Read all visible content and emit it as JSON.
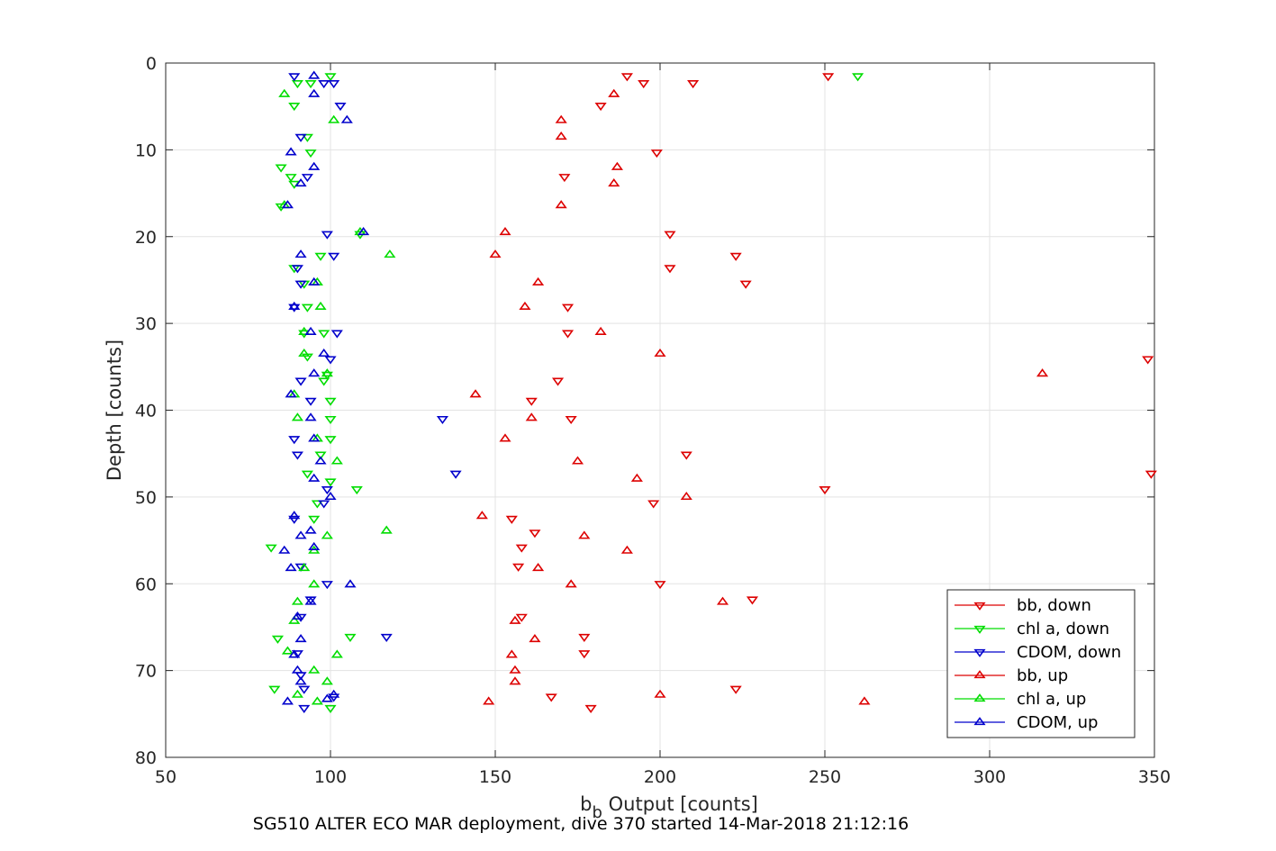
{
  "chart_data": {
    "type": "scatter",
    "xlabel_main": "b",
    "xlabel_sub": "b",
    "xlabel_rest": " Output [counts]",
    "ylabel": "Depth [counts]",
    "xlim": [
      50,
      350
    ],
    "ylim": [
      0,
      80
    ],
    "y_reversed": true,
    "x_ticks": [
      50,
      100,
      150,
      200,
      250,
      300,
      350
    ],
    "y_ticks": [
      0,
      10,
      20,
      30,
      40,
      50,
      60,
      70,
      80
    ],
    "grid": true,
    "legend_position": "bottom-right",
    "series": [
      {
        "name": "bb, down",
        "color": "#dd0000",
        "marker": "triangle-down",
        "points": [
          [
            190,
            1.5
          ],
          [
            251,
            1.5
          ],
          [
            195,
            2.3
          ],
          [
            210,
            2.3
          ],
          [
            182,
            4.9
          ],
          [
            199,
            10.3
          ],
          [
            171,
            13.1
          ],
          [
            203,
            19.7
          ],
          [
            223,
            22.2
          ],
          [
            203,
            23.6
          ],
          [
            226,
            25.4
          ],
          [
            172,
            28.1
          ],
          [
            172,
            31.1
          ],
          [
            348,
            34.1
          ],
          [
            169,
            36.6
          ],
          [
            161,
            38.9
          ],
          [
            173,
            41
          ],
          [
            208,
            45.1
          ],
          [
            250,
            49.1
          ],
          [
            198,
            50.7
          ],
          [
            155,
            52.5
          ],
          [
            162,
            54.1
          ],
          [
            158,
            55.8
          ],
          [
            157,
            58
          ],
          [
            200,
            60
          ],
          [
            228,
            61.8
          ],
          [
            158,
            63.8
          ],
          [
            177,
            66.1
          ],
          [
            177,
            68
          ],
          [
            223,
            72.1
          ],
          [
            167,
            73
          ],
          [
            179,
            74.3
          ],
          [
            349,
            47.3
          ]
        ]
      },
      {
        "name": "chl a, down",
        "color": "#00dd00",
        "marker": "triangle-down",
        "points": [
          [
            260,
            1.5
          ],
          [
            100,
            1.5
          ],
          [
            90,
            2.3
          ],
          [
            94,
            2.3
          ],
          [
            89,
            4.9
          ],
          [
            93,
            8.5
          ],
          [
            94,
            10.3
          ],
          [
            85,
            12
          ],
          [
            88,
            13.1
          ],
          [
            89,
            13.9
          ],
          [
            85,
            16.5
          ],
          [
            109,
            19.7
          ],
          [
            89,
            23.6
          ],
          [
            97,
            22.2
          ],
          [
            92,
            25.4
          ],
          [
            93,
            28.1
          ],
          [
            92,
            31.1
          ],
          [
            98,
            31.1
          ],
          [
            93,
            33.8
          ],
          [
            99,
            35.9
          ],
          [
            98,
            36.6
          ],
          [
            100,
            38.9
          ],
          [
            100,
            41
          ],
          [
            100,
            43.3
          ],
          [
            97,
            45.1
          ],
          [
            93,
            47.3
          ],
          [
            100,
            48.2
          ],
          [
            108,
            49.1
          ],
          [
            96,
            50.7
          ],
          [
            95,
            52.5
          ],
          [
            82,
            55.8
          ],
          [
            84,
            66.3
          ],
          [
            83,
            72.1
          ],
          [
            100,
            74.3
          ],
          [
            106,
            66.1
          ]
        ]
      },
      {
        "name": "CDOM, down",
        "color": "#0000cc",
        "marker": "triangle-down",
        "points": [
          [
            89,
            1.5
          ],
          [
            98,
            2.3
          ],
          [
            101,
            2.3
          ],
          [
            103,
            4.9
          ],
          [
            91,
            8.5
          ],
          [
            93,
            13.1
          ],
          [
            99,
            19.7
          ],
          [
            101,
            22.2
          ],
          [
            90,
            23.6
          ],
          [
            91,
            25.4
          ],
          [
            89,
            28.1
          ],
          [
            102,
            31.1
          ],
          [
            100,
            34.1
          ],
          [
            91,
            36.6
          ],
          [
            94,
            38.9
          ],
          [
            134,
            41
          ],
          [
            89,
            43.3
          ],
          [
            90,
            45.1
          ],
          [
            138,
            47.3
          ],
          [
            99,
            49.1
          ],
          [
            98,
            50.7
          ],
          [
            89,
            52.5
          ],
          [
            91,
            58
          ],
          [
            99,
            60
          ],
          [
            94,
            61.8
          ],
          [
            91,
            63.8
          ],
          [
            117,
            66.1
          ],
          [
            90,
            68
          ],
          [
            91,
            70.5
          ],
          [
            92,
            72.1
          ],
          [
            92,
            74.3
          ],
          [
            101,
            73
          ]
        ]
      },
      {
        "name": "bb, up",
        "color": "#dd0000",
        "marker": "triangle-up",
        "points": [
          [
            186,
            3.6
          ],
          [
            170,
            6.6
          ],
          [
            170,
            8.5
          ],
          [
            187,
            12
          ],
          [
            186,
            13.9
          ],
          [
            170,
            16.4
          ],
          [
            153,
            19.5
          ],
          [
            150,
            22.1
          ],
          [
            163,
            25.3
          ],
          [
            159,
            28.1
          ],
          [
            182,
            31
          ],
          [
            200,
            33.5
          ],
          [
            316,
            35.8
          ],
          [
            144,
            38.2
          ],
          [
            161,
            40.9
          ],
          [
            153,
            43.3
          ],
          [
            175,
            45.9
          ],
          [
            193,
            47.9
          ],
          [
            208,
            50
          ],
          [
            146,
            52.2
          ],
          [
            177,
            54.5
          ],
          [
            190,
            56.2
          ],
          [
            163,
            58.2
          ],
          [
            173,
            60.1
          ],
          [
            219,
            62.1
          ],
          [
            156,
            64.3
          ],
          [
            162,
            66.4
          ],
          [
            155,
            68.2
          ],
          [
            156,
            70
          ],
          [
            156,
            71.3
          ],
          [
            200,
            72.8
          ],
          [
            148,
            73.6
          ],
          [
            262,
            73.6
          ]
        ]
      },
      {
        "name": "chl a, up",
        "color": "#00dd00",
        "marker": "triangle-up",
        "points": [
          [
            86,
            3.6
          ],
          [
            101,
            6.6
          ],
          [
            86,
            16.4
          ],
          [
            109,
            19.5
          ],
          [
            118,
            22.1
          ],
          [
            96,
            25.3
          ],
          [
            97,
            28.1
          ],
          [
            92,
            31
          ],
          [
            92,
            33.5
          ],
          [
            99,
            35.8
          ],
          [
            89,
            38.2
          ],
          [
            90,
            40.9
          ],
          [
            96,
            43.3
          ],
          [
            102,
            45.9
          ],
          [
            99,
            54.5
          ],
          [
            95,
            56.2
          ],
          [
            92,
            58.2
          ],
          [
            95,
            60.1
          ],
          [
            90,
            62.1
          ],
          [
            89,
            64.3
          ],
          [
            87,
            67.8
          ],
          [
            102,
            68.2
          ],
          [
            95,
            70
          ],
          [
            99,
            71.3
          ],
          [
            90,
            72.8
          ],
          [
            96,
            73.6
          ],
          [
            117,
            53.9
          ]
        ]
      },
      {
        "name": "CDOM, up",
        "color": "#0000cc",
        "marker": "triangle-up",
        "points": [
          [
            95,
            1.5
          ],
          [
            95,
            3.6
          ],
          [
            105,
            6.6
          ],
          [
            88,
            10.3
          ],
          [
            95,
            12
          ],
          [
            91,
            13.9
          ],
          [
            87,
            16.4
          ],
          [
            110,
            19.5
          ],
          [
            91,
            22.1
          ],
          [
            95,
            25.3
          ],
          [
            89,
            28.1
          ],
          [
            94,
            31
          ],
          [
            98,
            33.5
          ],
          [
            95,
            35.8
          ],
          [
            88,
            38.2
          ],
          [
            94,
            40.9
          ],
          [
            95,
            43.3
          ],
          [
            97,
            45.9
          ],
          [
            95,
            47.9
          ],
          [
            100,
            50
          ],
          [
            89,
            52.2
          ],
          [
            94,
            53.9
          ],
          [
            91,
            54.5
          ],
          [
            86,
            56.2
          ],
          [
            95,
            55.8
          ],
          [
            88,
            58.2
          ],
          [
            106,
            60.1
          ],
          [
            94,
            62.1
          ],
          [
            90,
            63.8
          ],
          [
            91,
            66.4
          ],
          [
            89,
            68.2
          ],
          [
            90,
            70
          ],
          [
            91,
            71.3
          ],
          [
            101,
            72.8
          ],
          [
            99,
            73.3
          ],
          [
            87,
            73.6
          ]
        ]
      }
    ]
  },
  "caption": "SG510 ALTER ECO MAR deployment, dive 370 started 14-Mar-2018 21:12:16"
}
